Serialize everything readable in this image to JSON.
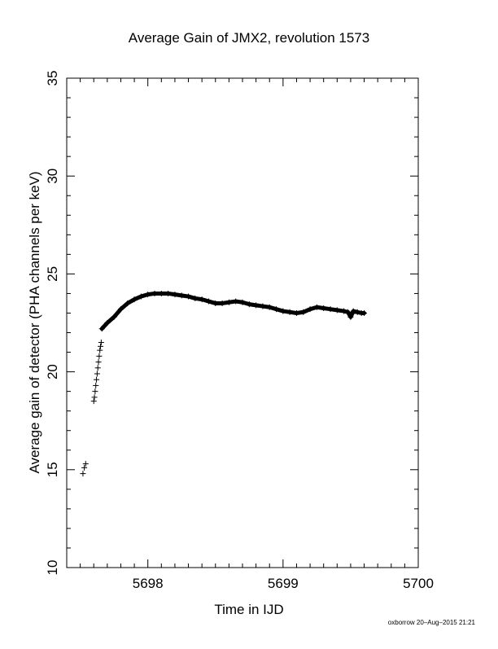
{
  "chart_data": {
    "type": "scatter",
    "title": "Average Gain of JMX2, revolution 1573",
    "xlabel": "Time in IJD",
    "ylabel": "Average gain of detector (PHA channels per keV)",
    "xlim": [
      5697.4,
      5700.0
    ],
    "ylim": [
      10,
      35
    ],
    "xticks": [
      5698,
      5699,
      5700
    ],
    "yticks": [
      10,
      15,
      20,
      25,
      30,
      35
    ],
    "marker": "+",
    "grid": false,
    "points": [
      [
        5697.52,
        14.8
      ],
      [
        5697.53,
        15.1
      ],
      [
        5697.54,
        15.3
      ],
      [
        5697.6,
        18.5
      ],
      [
        5697.605,
        18.7
      ],
      [
        5697.61,
        19.0
      ],
      [
        5697.615,
        19.3
      ],
      [
        5697.62,
        19.6
      ],
      [
        5697.625,
        19.9
      ],
      [
        5697.63,
        20.2
      ],
      [
        5697.635,
        20.5
      ],
      [
        5697.64,
        20.8
      ],
      [
        5697.645,
        21.1
      ],
      [
        5697.65,
        21.3
      ],
      [
        5697.655,
        21.5
      ],
      [
        5697.66,
        22.2
      ],
      [
        5697.7,
        22.5
      ],
      [
        5697.75,
        22.8
      ],
      [
        5697.8,
        23.2
      ],
      [
        5697.85,
        23.5
      ],
      [
        5697.9,
        23.7
      ],
      [
        5697.95,
        23.85
      ],
      [
        5698.0,
        23.95
      ],
      [
        5698.05,
        24.0
      ],
      [
        5698.1,
        24.0
      ],
      [
        5698.15,
        24.0
      ],
      [
        5698.2,
        23.95
      ],
      [
        5698.25,
        23.9
      ],
      [
        5698.3,
        23.85
      ],
      [
        5698.35,
        23.75
      ],
      [
        5698.4,
        23.7
      ],
      [
        5698.45,
        23.6
      ],
      [
        5698.5,
        23.5
      ],
      [
        5698.55,
        23.5
      ],
      [
        5698.6,
        23.55
      ],
      [
        5698.65,
        23.6
      ],
      [
        5698.7,
        23.55
      ],
      [
        5698.75,
        23.45
      ],
      [
        5698.8,
        23.4
      ],
      [
        5698.85,
        23.35
      ],
      [
        5698.9,
        23.3
      ],
      [
        5698.95,
        23.2
      ],
      [
        5699.0,
        23.1
      ],
      [
        5699.05,
        23.05
      ],
      [
        5699.1,
        23.0
      ],
      [
        5699.15,
        23.05
      ],
      [
        5699.2,
        23.2
      ],
      [
        5699.25,
        23.3
      ],
      [
        5699.3,
        23.25
      ],
      [
        5699.35,
        23.2
      ],
      [
        5699.4,
        23.15
      ],
      [
        5699.45,
        23.1
      ],
      [
        5699.48,
        23.05
      ],
      [
        5699.5,
        22.8
      ],
      [
        5699.52,
        23.1
      ],
      [
        5699.55,
        23.05
      ],
      [
        5699.58,
        23.0
      ],
      [
        5699.6,
        23.0
      ]
    ]
  },
  "footer": "oxborrow 20–Aug–2015 21:21",
  "colors": {
    "marker": "#000000",
    "axis": "#000000",
    "background": "#ffffff"
  }
}
